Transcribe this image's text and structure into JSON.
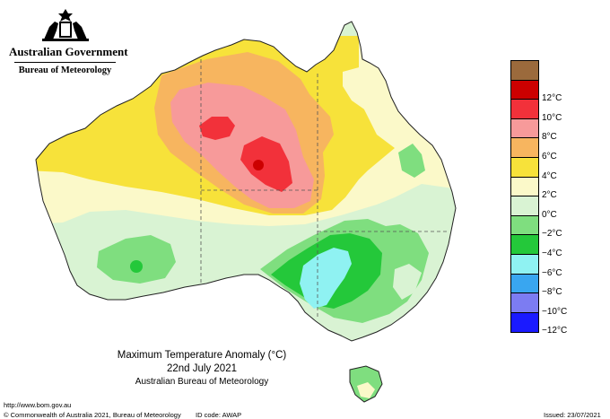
{
  "header": {
    "government": "Australian Government",
    "bureau": "Bureau of Meteorology",
    "crest_icon": "coat-of-arms-icon"
  },
  "legend": {
    "items": [
      {
        "label": "",
        "color": "#9b6a3c"
      },
      {
        "label": "12°C",
        "color": "#cc0000"
      },
      {
        "label": "10°C",
        "color": "#f2313a"
      },
      {
        "label": "8°C",
        "color": "#f79a9a"
      },
      {
        "label": "6°C",
        "color": "#f7b55f"
      },
      {
        "label": "4°C",
        "color": "#f7e23a"
      },
      {
        "label": "2°C",
        "color": "#fbf9c9"
      },
      {
        "label": "0°C",
        "color": "#d9f3d3"
      },
      {
        "label": "−2°C",
        "color": "#7fde7f"
      },
      {
        "label": "−4°C",
        "color": "#24c83a"
      },
      {
        "label": "−6°C",
        "color": "#8ff2f2"
      },
      {
        "label": "−8°C",
        "color": "#39a6f0"
      },
      {
        "label": "−10°C",
        "color": "#7c7cf2"
      },
      {
        "label": "−12°C",
        "color": "#1a1aff"
      }
    ]
  },
  "caption": {
    "title": "Maximum Temperature Anomaly (°C)",
    "date": "22nd July 2021",
    "org": "Australian Bureau of Meteorology"
  },
  "footer": {
    "url": "http://www.bom.gov.au",
    "copyright": "© Commonwealth of Australia 2021, Bureau of Meteorology",
    "id_code": "ID code: AWAP",
    "issued": "Issued: 23/07/2021"
  }
}
